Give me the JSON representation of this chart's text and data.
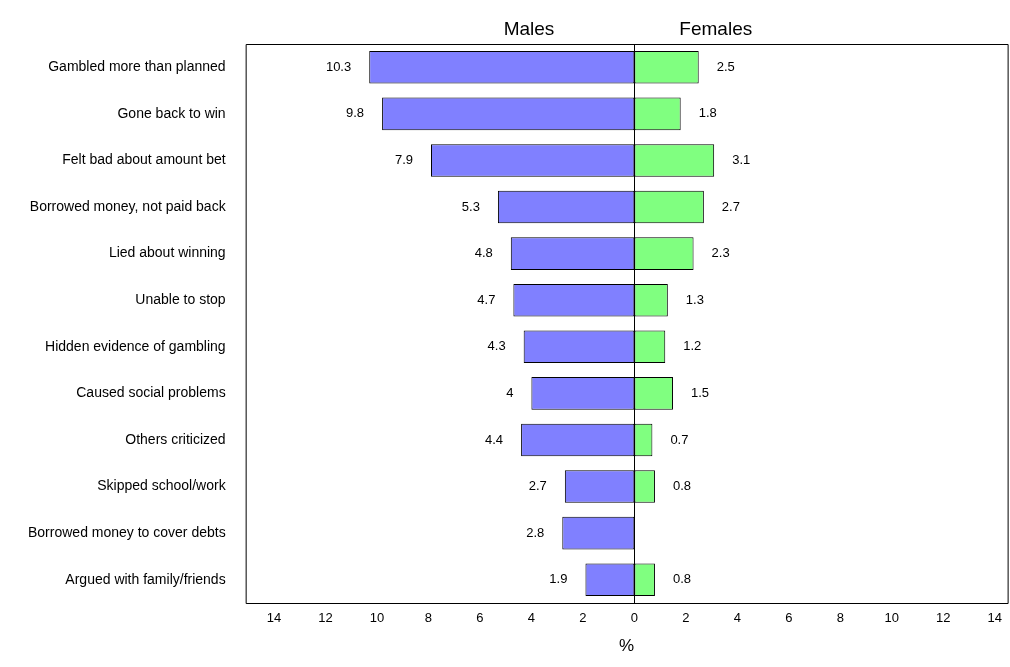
{
  "chart_data": {
    "type": "bar",
    "orientation": "horizontal",
    "xlabel": "%",
    "categories": [
      "Gambled more than planned",
      "Gone back to win",
      "Felt bad about amount bet",
      "Borrowed money, not paid back",
      "Lied about winning",
      "Unable to stop",
      "Hidden evidence of gambling",
      "Caused social problems",
      "Others criticized",
      "Skipped school/work",
      "Borrowed money to cover debts",
      "Argued with family/friends"
    ],
    "series": [
      {
        "name": "Males",
        "color": "#8080ff",
        "values": [
          10.3,
          9.8,
          7.9,
          5.3,
          4.8,
          4.7,
          4.3,
          4,
          4.4,
          2.7,
          2.8,
          1.9
        ],
        "base": [
          -10.3,
          -9.8,
          -7.9,
          -5.3,
          -4.8,
          -4.7,
          -4.3,
          -4,
          -4.4,
          -2.7,
          -2.8,
          -1.9
        ],
        "value_labels": [
          "10.3",
          "9.8",
          "7.9",
          "5.3",
          "4.8",
          "4.7",
          "4.3",
          "4",
          "4.4",
          "2.7",
          "2.8",
          "1.9"
        ]
      },
      {
        "name": "Females",
        "color": "#80ff80",
        "values": [
          2.5,
          1.8,
          3.1,
          2.7,
          2.3,
          1.3,
          1.2,
          1.5,
          0.7,
          0.8,
          null,
          0.8
        ],
        "value_labels": [
          "2.5",
          "1.8",
          "3.1",
          "2.7",
          "2.3",
          "1.3",
          "1.2",
          "1.5",
          "0.7",
          "0.8",
          null,
          "0.8"
        ]
      }
    ],
    "xlim": [
      -15.1,
      14.5
    ],
    "xticks": [
      {
        "value": -14,
        "label": "14"
      },
      {
        "value": -12,
        "label": "12"
      },
      {
        "value": -10,
        "label": "10"
      },
      {
        "value": -8,
        "label": "8"
      },
      {
        "value": -6,
        "label": "6"
      },
      {
        "value": -4,
        "label": "4"
      },
      {
        "value": -2,
        "label": "2"
      },
      0,
      2,
      4,
      6,
      8,
      10,
      12,
      14
    ],
    "ref_lines": [
      {
        "axis": "x",
        "value": 0
      }
    ],
    "grid": false,
    "legend": false
  }
}
